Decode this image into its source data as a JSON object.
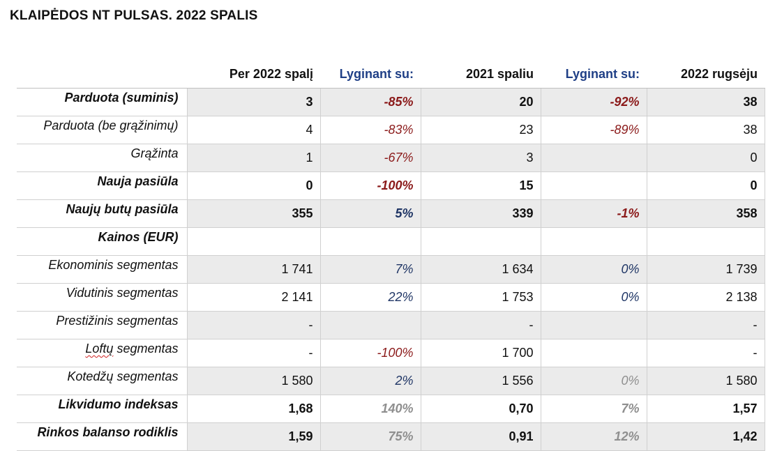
{
  "title": "KLAIPĖDOS NT PULSAS. 2022 SPALIS",
  "columns": [
    "",
    "Per 2022 spalį",
    "Lyginant su:",
    "2021 spaliu",
    "Lyginant su:",
    "2022 rugsėju"
  ],
  "rows": [
    {
      "label": "Parduota (suminis)",
      "bold": true,
      "shaded": true,
      "cells": [
        {
          "v": "3"
        },
        {
          "v": "-85%",
          "t": "neg"
        },
        {
          "v": "20"
        },
        {
          "v": "-92%",
          "t": "neg"
        },
        {
          "v": "38"
        }
      ]
    },
    {
      "label": "Parduota (be grąžinimų)",
      "bold": false,
      "shaded": false,
      "cells": [
        {
          "v": "4"
        },
        {
          "v": "-83%",
          "t": "neg"
        },
        {
          "v": "23"
        },
        {
          "v": "-89%",
          "t": "neg"
        },
        {
          "v": "38"
        }
      ]
    },
    {
      "label": "Grąžinta",
      "bold": false,
      "shaded": true,
      "cells": [
        {
          "v": "1"
        },
        {
          "v": "-67%",
          "t": "neg"
        },
        {
          "v": "3"
        },
        {
          "v": ""
        },
        {
          "v": "0"
        }
      ]
    },
    {
      "label": "Nauja pasiūla",
      "bold": true,
      "shaded": false,
      "cells": [
        {
          "v": "0"
        },
        {
          "v": "-100%",
          "t": "neg"
        },
        {
          "v": "15"
        },
        {
          "v": ""
        },
        {
          "v": "0"
        }
      ]
    },
    {
      "label": "Naujų butų pasiūla",
      "bold": true,
      "shaded": true,
      "cells": [
        {
          "v": "355"
        },
        {
          "v": "5%",
          "t": "pos"
        },
        {
          "v": "339"
        },
        {
          "v": "-1%",
          "t": "neg"
        },
        {
          "v": "358"
        }
      ]
    },
    {
      "label": "Kainos (EUR)",
      "bold": true,
      "shaded": false,
      "cells": [
        {
          "v": ""
        },
        {
          "v": ""
        },
        {
          "v": ""
        },
        {
          "v": ""
        },
        {
          "v": ""
        }
      ]
    },
    {
      "label": "Ekonominis segmentas",
      "bold": false,
      "shaded": true,
      "cells": [
        {
          "v": "1 741"
        },
        {
          "v": "7%",
          "t": "pos"
        },
        {
          "v": "1 634"
        },
        {
          "v": "0%",
          "t": "pos"
        },
        {
          "v": "1 739"
        }
      ]
    },
    {
      "label": "Vidutinis segmentas",
      "bold": false,
      "shaded": false,
      "cells": [
        {
          "v": "2 141"
        },
        {
          "v": "22%",
          "t": "pos"
        },
        {
          "v": "1 753"
        },
        {
          "v": "0%",
          "t": "pos"
        },
        {
          "v": "2 138"
        }
      ]
    },
    {
      "label": "Prestižinis segmentas",
      "bold": false,
      "shaded": true,
      "cells": [
        {
          "v": "-"
        },
        {
          "v": ""
        },
        {
          "v": "-"
        },
        {
          "v": ""
        },
        {
          "v": "-"
        }
      ]
    },
    {
      "label": "Loftų segmentas",
      "bold": false,
      "shaded": false,
      "squiggle": "Loftų",
      "cells": [
        {
          "v": "-"
        },
        {
          "v": "-100%",
          "t": "neg"
        },
        {
          "v": "1 700"
        },
        {
          "v": ""
        },
        {
          "v": "-"
        }
      ]
    },
    {
      "label": "Kotedžų segmentas",
      "bold": false,
      "shaded": true,
      "cells": [
        {
          "v": "1 580"
        },
        {
          "v": "2%",
          "t": "pos"
        },
        {
          "v": "1 556"
        },
        {
          "v": "0%",
          "t": "gray"
        },
        {
          "v": "1 580"
        }
      ]
    },
    {
      "label": "Likvidumo indeksas",
      "bold": true,
      "shaded": false,
      "cells": [
        {
          "v": "1,68"
        },
        {
          "v": "140%",
          "t": "gray"
        },
        {
          "v": "0,70"
        },
        {
          "v": "7%",
          "t": "gray"
        },
        {
          "v": "1,57"
        }
      ]
    },
    {
      "label": "Rinkos balanso rodiklis",
      "bold": true,
      "shaded": true,
      "cells": [
        {
          "v": "1,59"
        },
        {
          "v": "75%",
          "t": "gray"
        },
        {
          "v": "0,91"
        },
        {
          "v": "12%",
          "t": "gray"
        },
        {
          "v": "1,42"
        }
      ]
    }
  ]
}
